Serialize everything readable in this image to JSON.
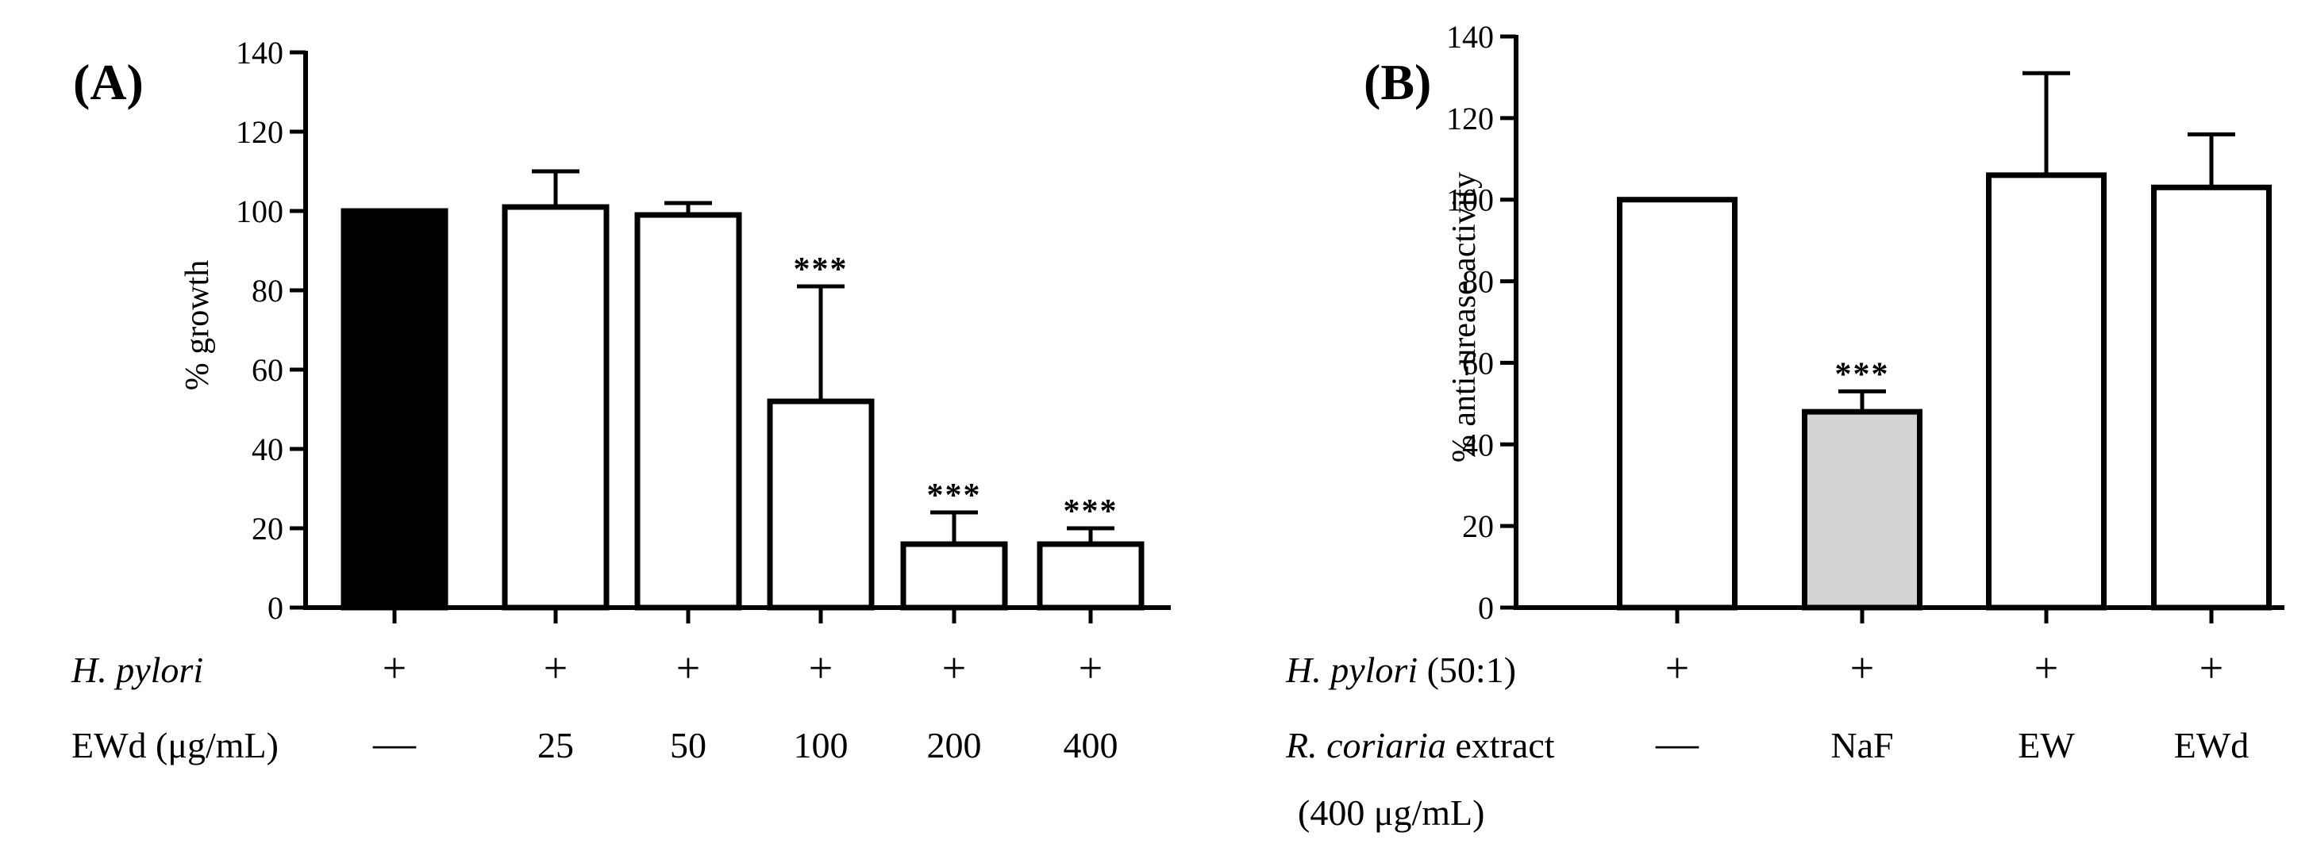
{
  "chart_data": [
    {
      "panel": "(A)",
      "type": "bar",
      "ylabel": "% growth",
      "ylim": [
        0,
        140
      ],
      "yticks": [
        0,
        20,
        40,
        60,
        80,
        100,
        120,
        140
      ],
      "bars": [
        {
          "value": 100,
          "error": 0,
          "fill": "#000000",
          "sig": ""
        },
        {
          "value": 101,
          "error": 9,
          "fill": "#ffffff",
          "sig": ""
        },
        {
          "value": 99,
          "error": 3,
          "fill": "#ffffff",
          "sig": ""
        },
        {
          "value": 52,
          "error": 29,
          "fill": "#ffffff",
          "sig": "***"
        },
        {
          "value": 16,
          "error": 8,
          "fill": "#ffffff",
          "sig": "***"
        },
        {
          "value": 16,
          "error": 4,
          "fill": "#ffffff",
          "sig": "***"
        }
      ],
      "rows": [
        {
          "label_italic": "H. pylori",
          "label_rest": "",
          "label_line2": "",
          "cells": [
            "+",
            "+",
            "+",
            "+",
            "+",
            "+"
          ]
        },
        {
          "label_italic": "",
          "label_rest": "EWd (μg/mL)",
          "label_line2": "",
          "cells": [
            "—",
            "25",
            "50",
            "100",
            "200",
            "400"
          ]
        }
      ]
    },
    {
      "panel": "(B)",
      "type": "bar",
      "ylabel": "% anti-urease activity",
      "ylim": [
        0,
        140
      ],
      "yticks": [
        0,
        20,
        40,
        60,
        80,
        100,
        120,
        140
      ],
      "bars": [
        {
          "value": 100,
          "error": 0,
          "fill": "#ffffff",
          "sig": ""
        },
        {
          "value": 48,
          "error": 5,
          "fill": "#d3d3d3",
          "sig": "***"
        },
        {
          "value": 106,
          "error": 25,
          "fill": "#ffffff",
          "sig": ""
        },
        {
          "value": 103,
          "error": 13,
          "fill": "#ffffff",
          "sig": ""
        }
      ],
      "rows": [
        {
          "label_italic": "H. pylori",
          "label_rest": " (50:1)",
          "label_line2": "",
          "cells": [
            "+",
            "+",
            "+",
            "+"
          ]
        },
        {
          "label_italic": "R. coriaria",
          "label_rest": " extract",
          "label_line2": "(400 μg/mL)",
          "cells": [
            "—",
            "NaF",
            "EW",
            "EWd"
          ]
        }
      ]
    }
  ]
}
